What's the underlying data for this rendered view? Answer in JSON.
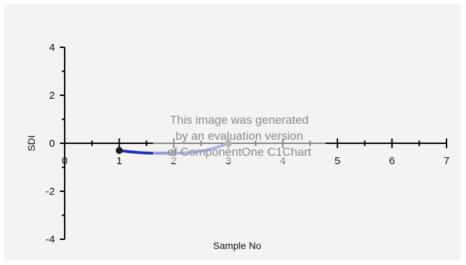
{
  "chart_data": {
    "type": "line",
    "title": "",
    "xlabel": "Sample No",
    "ylabel": "SDI",
    "xlim": [
      0,
      7
    ],
    "ylim": [
      -4,
      4
    ],
    "x_ticks": [
      0,
      1,
      2,
      3,
      4,
      5,
      6,
      7
    ],
    "y_ticks": [
      4,
      2,
      0,
      -2,
      -4
    ],
    "grid": false,
    "series": [
      {
        "points": [
          {
            "x": 1,
            "y": -0.3
          },
          {
            "x": 2,
            "y": -0.4
          },
          {
            "x": 3,
            "y": 0.0
          }
        ],
        "colors": [
          "#1a1a1a",
          "#6f6f6f",
          "#6f6f6f"
        ],
        "line_colors": [
          "#1f2fb8",
          "#5b63e0"
        ]
      }
    ],
    "watermark": [
      "This image was generated",
      "by an evaluation version",
      "of ComponentOne C1Chart"
    ]
  },
  "colors": {
    "background": "#f3f3f3",
    "axis": "#000000"
  }
}
